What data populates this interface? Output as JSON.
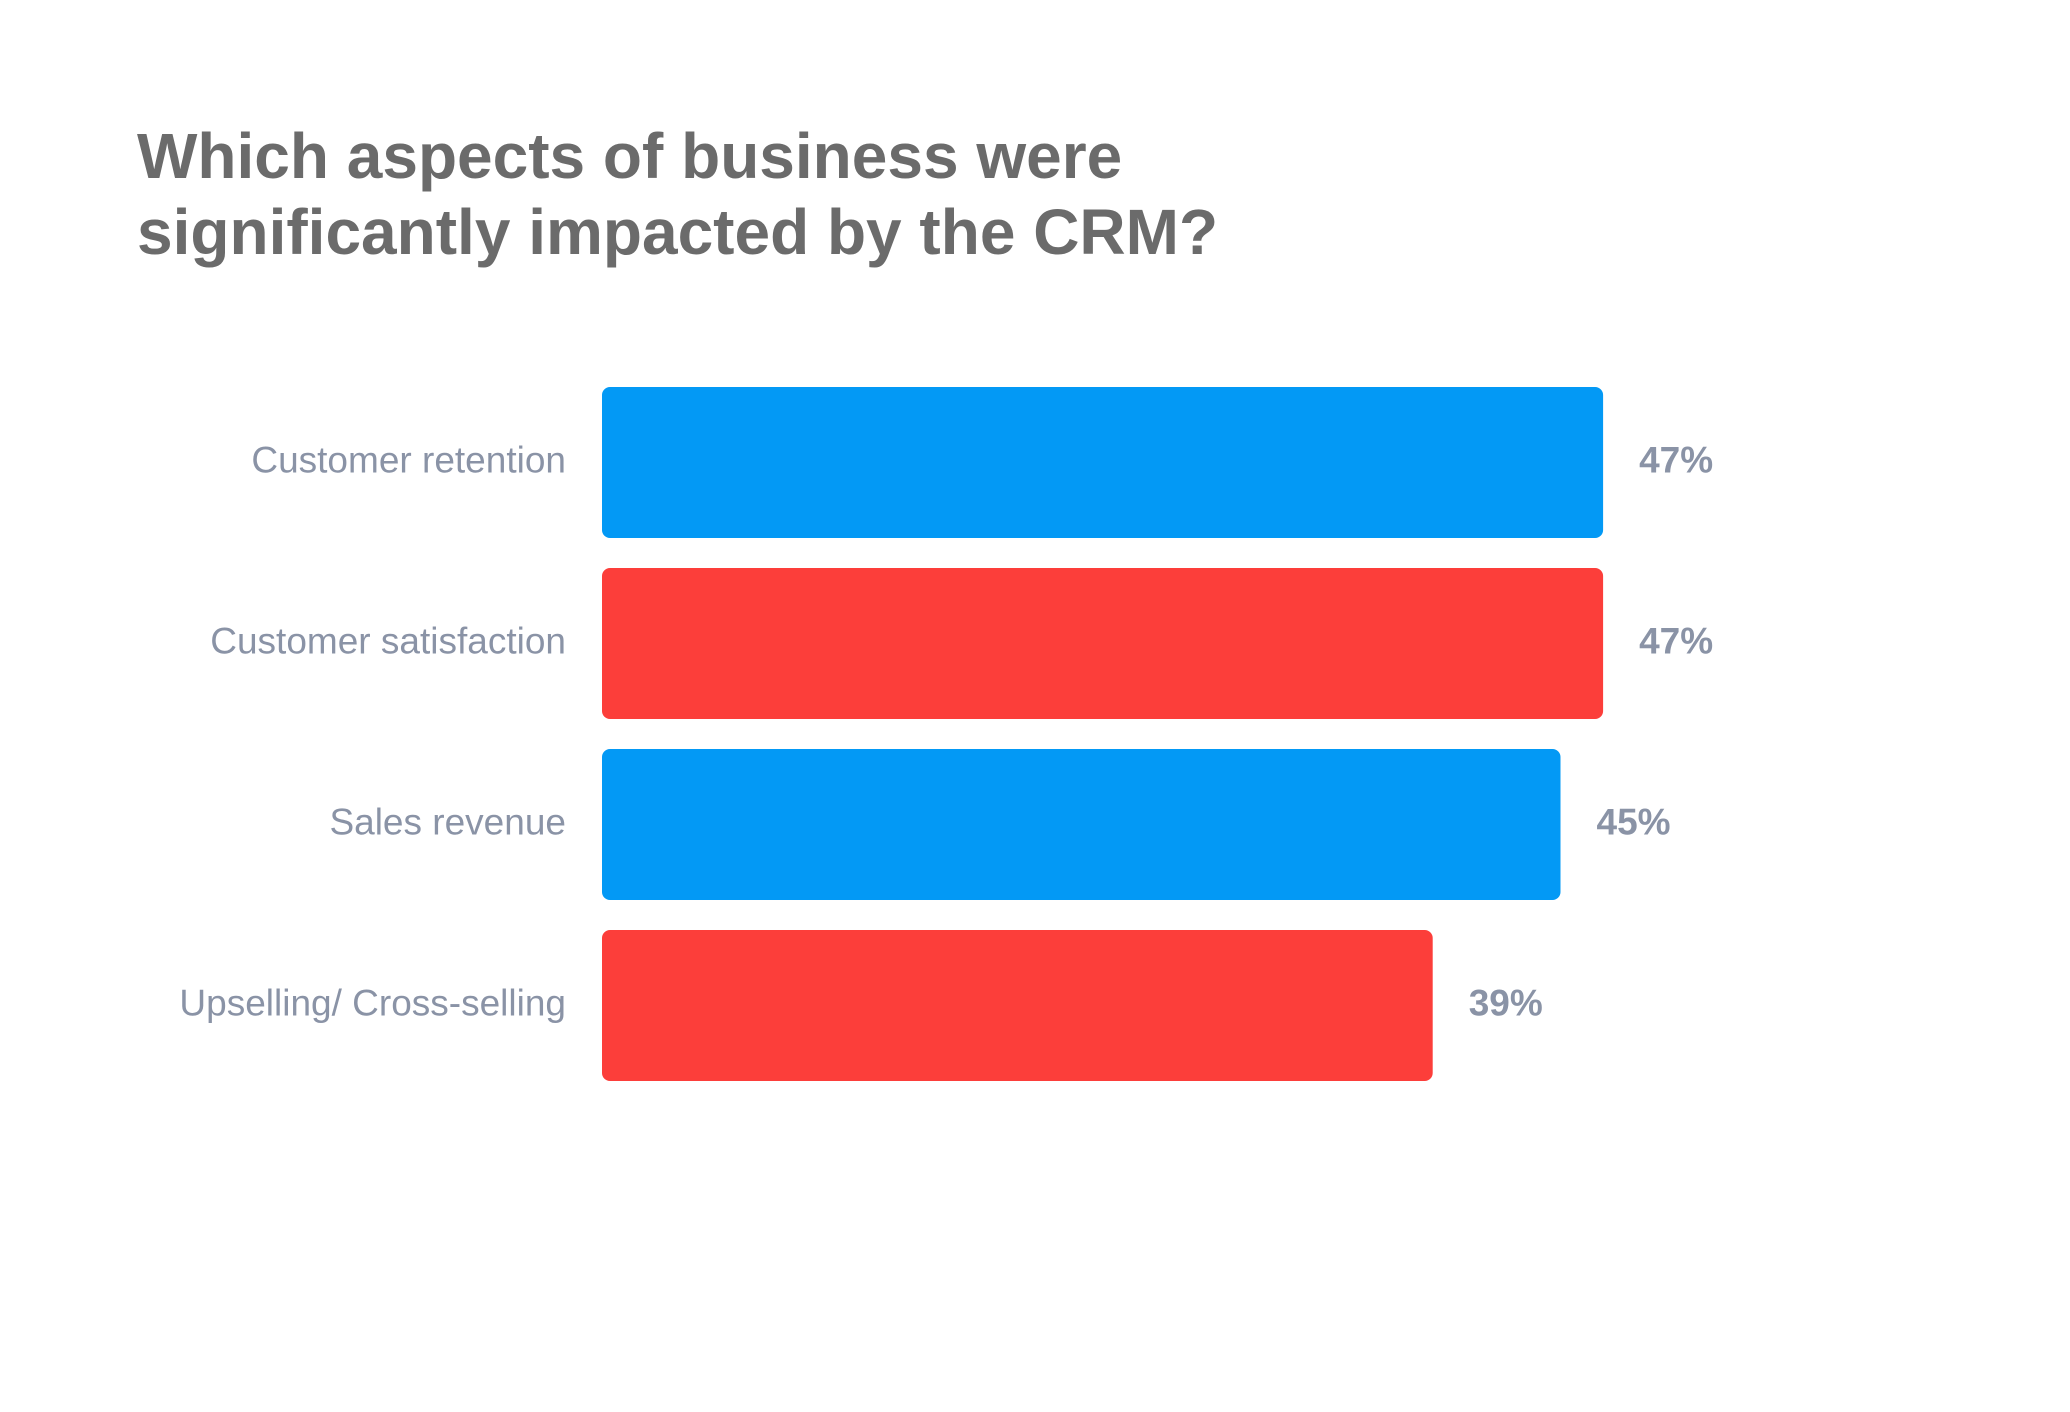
{
  "chart_data": {
    "type": "bar",
    "orientation": "horizontal",
    "title": "Which aspects of business were\nsignificantly impacted by the CRM?",
    "categories": [
      "Customer retention",
      "Customer satisfaction",
      "Sales revenue",
      "Upselling/ Cross-selling"
    ],
    "values": [
      47,
      47,
      45,
      39
    ],
    "value_labels": [
      "47%",
      "47%",
      "45%",
      "39%"
    ],
    "colors": [
      "#0399f5",
      "#fc3e3a",
      "#0399f5",
      "#fc3e3a"
    ]
  }
}
